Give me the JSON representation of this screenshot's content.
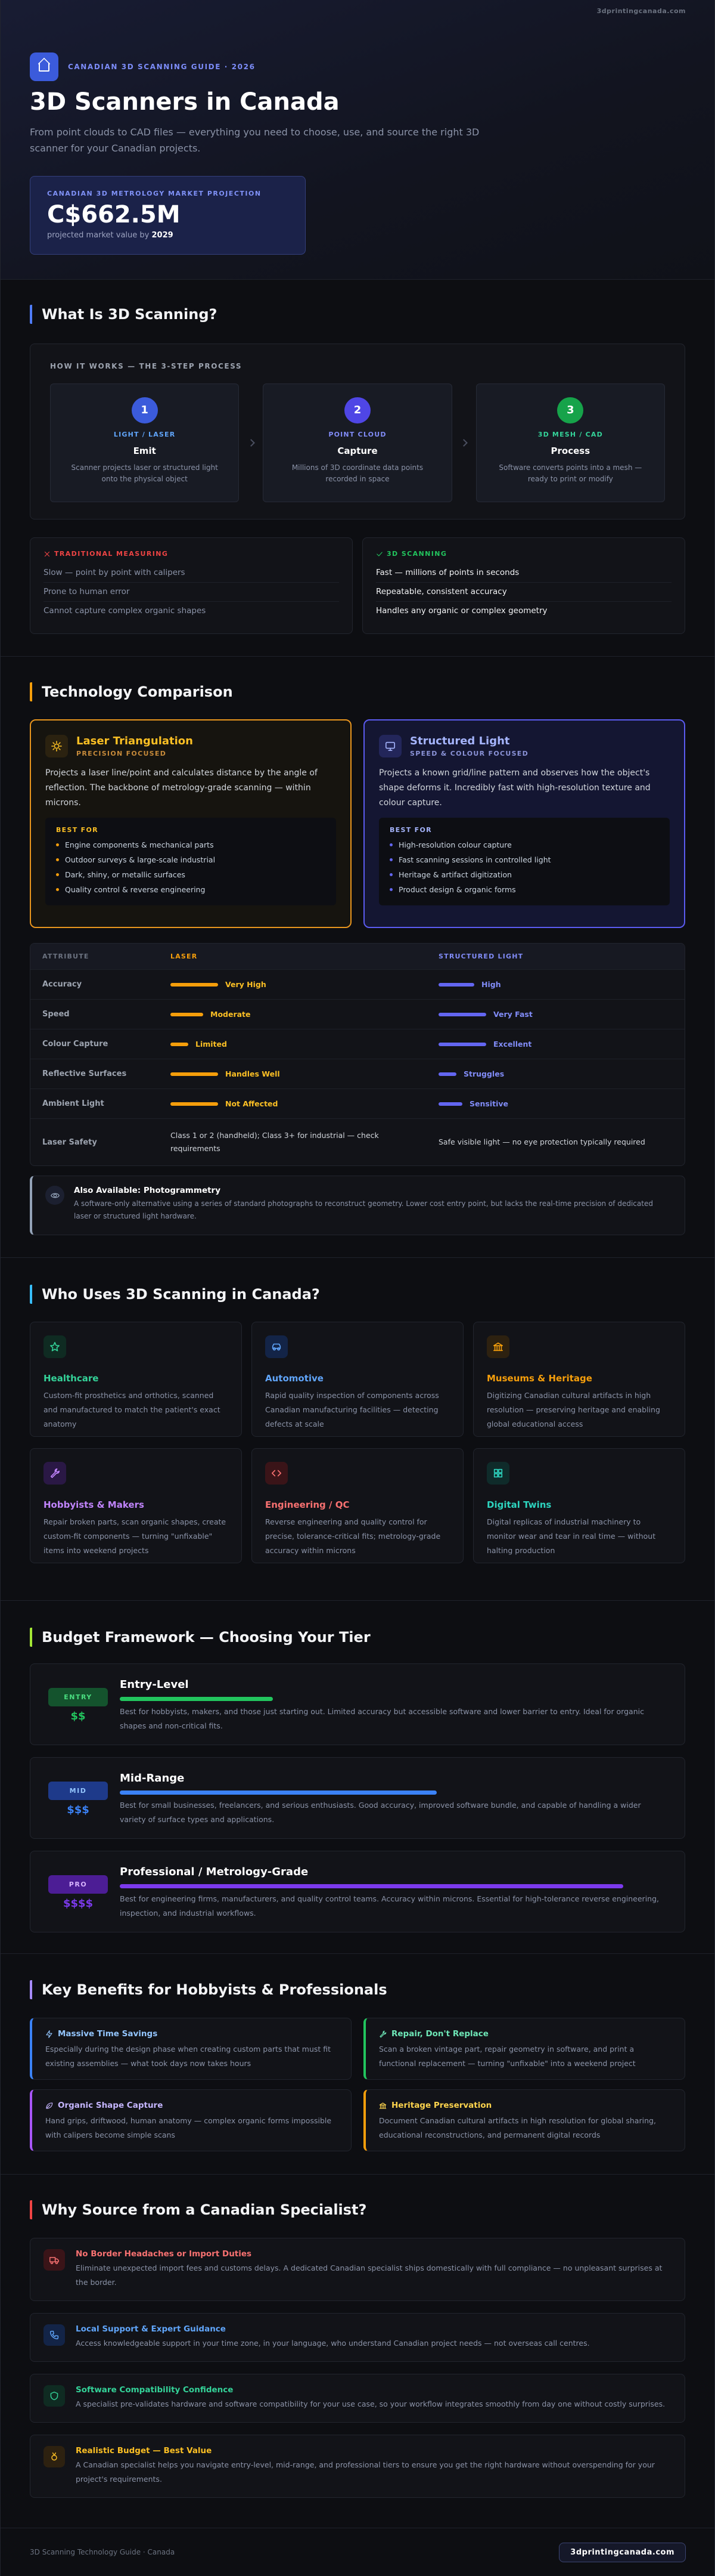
{
  "top_bar": {
    "site": "3dprintingcanada.com"
  },
  "header": {
    "eyebrow": "CANADIAN 3D SCANNING GUIDE · 2026",
    "title": "3D Scanners in Canada",
    "subtitle": "From point clouds to CAD files — everything you need to choose, use, and source the right 3D scanner for your Canadian projects.",
    "market": {
      "label": "CANADIAN 3D METROLOGY MARKET PROJECTION",
      "value": "C$662.5M",
      "note": "projected market value by",
      "year": "2029"
    }
  },
  "what_is": {
    "heading": "What Is 3D Scanning?",
    "steps_label": "HOW IT WORKS — THE 3-STEP PROCESS",
    "steps": [
      {
        "number": 1,
        "tag": "LIGHT / LASER",
        "title": "Emit",
        "text": "Scanner projects laser or structured light onto the physical object"
      },
      {
        "number": 2,
        "tag": "POINT CLOUD",
        "title": "Capture",
        "text": "Millions of 3D coordinate data points recorded in space"
      },
      {
        "number": 3,
        "tag": "3D MESH / CAD",
        "title": "Process",
        "text": "Software converts points into a mesh — ready to print or modify"
      }
    ],
    "traditional": {
      "label": "TRADITIONAL MEASURING",
      "items": [
        "Slow — point by point with calipers",
        "Prone to human error",
        "Cannot capture complex organic shapes"
      ]
    },
    "scanning": {
      "label": "3D SCANNING",
      "items": [
        "Fast — millions of points in seconds",
        "Repeatable, consistent accuracy",
        "Handles any organic or complex geometry"
      ]
    }
  },
  "tech": {
    "heading": "Technology Comparison",
    "cards": [
      {
        "title": "Laser Triangulation",
        "subtitle": "PRECISION FOCUSED",
        "text": "Projects a laser line/point and calculates distance by the angle of reflection. The backbone of metrology-grade scanning — within microns.",
        "best_label": "BEST FOR",
        "best": [
          "Engine components & mechanical parts",
          "Outdoor surveys & large-scale industrial",
          "Dark, shiny, or metallic surfaces",
          "Quality control & reverse engineering"
        ]
      },
      {
        "title": "Structured Light",
        "subtitle": "SPEED & COLOUR FOCUSED",
        "text": "Projects a known grid/line pattern and observes how the object's shape deforms it. Incredibly fast with high-resolution texture and colour capture.",
        "best_label": "BEST FOR",
        "best": [
          "High-resolution colour capture",
          "Fast scanning sessions in controlled light",
          "Heritage & artifact digitization",
          "Product design & organic forms"
        ]
      }
    ],
    "table": {
      "header": [
        "ATTRIBUTE",
        "LASER",
        "STRUCTURED LIGHT"
      ],
      "rows": [
        [
          "Accuracy",
          "Very High",
          "High"
        ],
        [
          "Speed",
          "Moderate",
          "Very Fast"
        ],
        [
          "Colour Capture",
          "Limited",
          "Excellent"
        ],
        [
          "Reflective Surfaces",
          "Handles Well",
          "Struggles"
        ],
        [
          "Ambient Light",
          "Not Affected",
          "Sensitive"
        ],
        [
          "Laser Safety",
          "Class 1 or 2 (handheld); Class 3+ for industrial — check requirements",
          "Safe visible light — no eye protection typically required"
        ]
      ]
    },
    "photogrammetry": {
      "title": "Also Available: Photogrammetry",
      "text": "A software-only alternative using a series of standard photographs to reconstruct geometry. Lower cost entry point, but lacks the real-time precision of dedicated laser or structured light hardware."
    }
  },
  "who": {
    "heading": "Who Uses 3D Scanning in Canada?",
    "items": [
      {
        "title": "Healthcare",
        "text": "Custom-fit prosthetics and orthotics, scanned and manufactured to match the patient's exact anatomy"
      },
      {
        "title": "Automotive",
        "text": "Rapid quality inspection of components across Canadian manufacturing facilities — detecting defects at scale"
      },
      {
        "title": "Museums & Heritage",
        "text": "Digitizing Canadian cultural artifacts in high resolution — preserving heritage and enabling global educational access"
      },
      {
        "title": "Hobbyists & Makers",
        "text": "Repair broken parts, scan organic shapes, create custom-fit components — turning \"unfixable\" items into weekend projects"
      },
      {
        "title": "Engineering / QC",
        "text": "Reverse engineering and quality control for precise, tolerance-critical fits; metrology-grade accuracy within microns"
      },
      {
        "title": "Digital Twins",
        "text": "Digital replicas of industrial machinery to monitor wear and tear in real time — without halting production"
      }
    ]
  },
  "budget": {
    "heading": "Budget Framework — Choosing Your Tier",
    "tiers": [
      {
        "badge": "ENTRY",
        "price": "$$",
        "title": "Entry-Level",
        "text": "Best for hobbyists, makers, and those just starting out. Limited accuracy but accessible software and lower barrier to entry. Ideal for organic shapes and non-critical fits."
      },
      {
        "badge": "MID",
        "price": "$$$",
        "title": "Mid-Range",
        "text": "Best for small businesses, freelancers, and serious enthusiasts. Good accuracy, improved software bundle, and capable of handling a wider variety of surface types and applications."
      },
      {
        "badge": "PRO",
        "price": "$$$$",
        "title": "Professional / Metrology-Grade",
        "text": "Best for engineering firms, manufacturers, and quality control teams. Accuracy within microns. Essential for high-tolerance reverse engineering, inspection, and industrial workflows."
      }
    ]
  },
  "benefits": {
    "heading": "Key Benefits for Hobbyists & Professionals",
    "items": [
      {
        "title": "Massive Time Savings",
        "text": "Especially during the design phase when creating custom parts that must fit existing assemblies — what took days now takes hours"
      },
      {
        "title": "Repair, Don't Replace",
        "text": "Scan a broken vintage part, repair geometry in software, and print a functional replacement — turning \"unfixable\" into a weekend project"
      },
      {
        "title": "Organic Shape Capture",
        "text": "Hand grips, driftwood, human anatomy — complex organic forms impossible with calipers become simple scans"
      },
      {
        "title": "Heritage Preservation",
        "text": "Document Canadian cultural artifacts in high resolution for global sharing, educational reconstructions, and permanent digital records"
      }
    ]
  },
  "why": {
    "heading": "Why Source from a Canadian Specialist?",
    "items": [
      {
        "title": "No Border Headaches or Import Duties",
        "text": "Eliminate unexpected import fees and customs delays. A dedicated Canadian specialist ships domestically with full compliance — no unpleasant surprises at the border."
      },
      {
        "title": "Local Support & Expert Guidance",
        "text": "Access knowledgeable support in your time zone, in your language, who understand Canadian project needs — not overseas call centres."
      },
      {
        "title": "Software Compatibility Confidence",
        "text": "A specialist pre-validates hardware and software compatibility for your use case, so your workflow integrates smoothly from day one without costly surprises."
      },
      {
        "title": "Realistic Budget — Best Value",
        "text": "A Canadian specialist helps you navigate entry-level, mid-range, and professional tiers to ensure you get the right hardware without overspending for your project's requirements."
      }
    ]
  },
  "footer": {
    "text": "3D Scanning Technology Guide · Canada",
    "site": "3dprintingcanada.com"
  }
}
